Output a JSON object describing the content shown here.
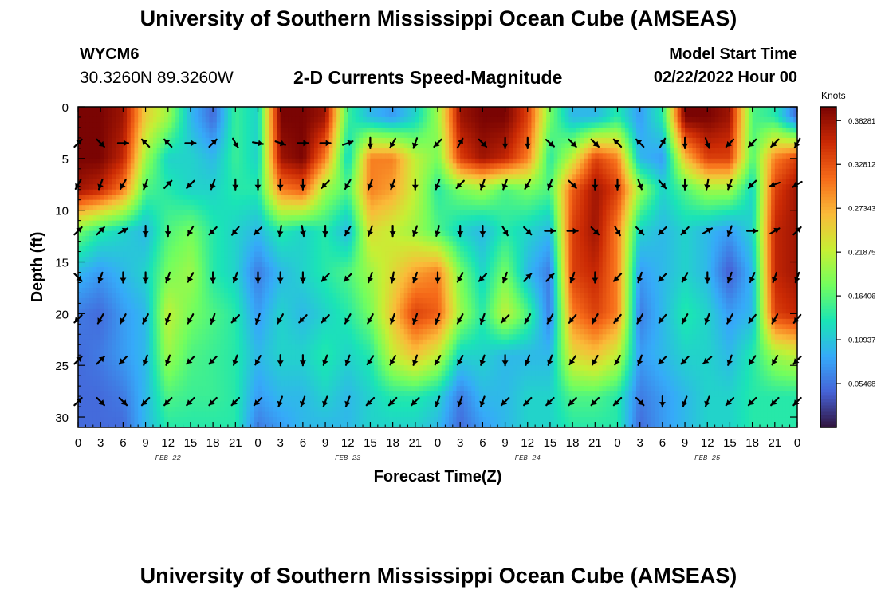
{
  "header": {
    "title": "University of Southern Mississippi Ocean Cube (AMSEAS)",
    "station_id": "WYCM6",
    "station_coords": "30.3260N  89.3260W",
    "subtitle": "2-D Currents Speed-Magnitude",
    "start_label": "Model Start Time",
    "start_value": "02/22/2022 Hour 00"
  },
  "footer": {
    "title": "University of Southern Mississippi Ocean Cube (AMSEAS)"
  },
  "chart_data": {
    "type": "heatmap",
    "xlabel": "Forecast Time(Z)",
    "ylabel": "Depth (ft)",
    "x_tick_labels": [
      "0",
      "3",
      "6",
      "9",
      "12",
      "15",
      "18",
      "21",
      "0",
      "3",
      "6",
      "9",
      "12",
      "15",
      "18",
      "21",
      "0",
      "3",
      "6",
      "9",
      "12",
      "15",
      "18",
      "21",
      "0",
      "3",
      "6",
      "9",
      "12",
      "15",
      "18",
      "21",
      "0"
    ],
    "x_range_hours": [
      0,
      96
    ],
    "date_labels": [
      {
        "label": "FEB 22",
        "hour": 12
      },
      {
        "label": "FEB 23",
        "hour": 36
      },
      {
        "label": "FEB 24",
        "hour": 60
      },
      {
        "label": "FEB 25",
        "hour": 84
      }
    ],
    "y_ticks": [
      0,
      5,
      10,
      15,
      20,
      25,
      30
    ],
    "ylim": [
      0,
      31
    ],
    "y_inverted": true,
    "colorbar": {
      "unit": "Knots",
      "min": 0.0,
      "max": 0.4,
      "ticks": [
        "0.05468",
        "0.10937",
        "0.16406",
        "0.21875",
        "0.27343",
        "0.32812",
        "0.38281"
      ],
      "tick_values": [
        0.05468,
        0.10937,
        0.16406,
        0.21875,
        0.27343,
        0.32812,
        0.38281
      ],
      "colors": [
        "#30123b",
        "#4662d7",
        "#36aaf9",
        "#1ae4b6",
        "#72fe5e",
        "#c7ef34",
        "#fabb39",
        "#f66b19",
        "#cb2a04",
        "#7a0403"
      ]
    },
    "arrow_depths": [
      3.5,
      7.5,
      12,
      16.5,
      20.5,
      24.5,
      28.5
    ],
    "arrow_hours": [
      0,
      3,
      6,
      9,
      12,
      15,
      18,
      21,
      24,
      27,
      30,
      33,
      36,
      39,
      42,
      45,
      48,
      51,
      54,
      57,
      60,
      63,
      66,
      69,
      72,
      75,
      78,
      81,
      84,
      87,
      90,
      93,
      96
    ],
    "speed_bands": [
      {
        "depth": 1,
        "values": [
          0.4,
          0.4,
          0.38,
          0.25,
          0.2,
          0.1,
          0.05,
          0.15,
          0.12,
          0.4,
          0.4,
          0.38,
          0.15,
          0.1,
          0.08,
          0.12,
          0.2,
          0.38,
          0.4,
          0.4,
          0.34,
          0.18,
          0.1,
          0.1,
          0.14,
          0.08,
          0.14,
          0.4,
          0.4,
          0.38,
          0.16,
          0.14,
          0.05
        ]
      },
      {
        "depth": 5,
        "values": [
          0.4,
          0.4,
          0.36,
          0.2,
          0.12,
          0.12,
          0.1,
          0.15,
          0.12,
          0.38,
          0.4,
          0.3,
          0.12,
          0.3,
          0.3,
          0.22,
          0.18,
          0.34,
          0.38,
          0.36,
          0.3,
          0.14,
          0.22,
          0.34,
          0.3,
          0.1,
          0.08,
          0.26,
          0.34,
          0.34,
          0.16,
          0.3,
          0.34
        ]
      },
      {
        "depth": 8,
        "values": [
          0.38,
          0.36,
          0.3,
          0.16,
          0.14,
          0.12,
          0.12,
          0.14,
          0.14,
          0.3,
          0.32,
          0.2,
          0.16,
          0.3,
          0.28,
          0.22,
          0.14,
          0.18,
          0.2,
          0.16,
          0.18,
          0.16,
          0.32,
          0.38,
          0.34,
          0.2,
          0.12,
          0.16,
          0.2,
          0.2,
          0.12,
          0.34,
          0.38
        ]
      },
      {
        "depth": 12,
        "values": [
          0.18,
          0.14,
          0.12,
          0.1,
          0.16,
          0.18,
          0.14,
          0.12,
          0.1,
          0.14,
          0.12,
          0.14,
          0.1,
          0.24,
          0.22,
          0.2,
          0.16,
          0.12,
          0.1,
          0.14,
          0.12,
          0.1,
          0.34,
          0.38,
          0.3,
          0.12,
          0.1,
          0.12,
          0.1,
          0.08,
          0.12,
          0.36,
          0.38
        ]
      },
      {
        "depth": 16,
        "values": [
          0.1,
          0.08,
          0.1,
          0.12,
          0.18,
          0.2,
          0.14,
          0.12,
          0.06,
          0.1,
          0.12,
          0.14,
          0.16,
          0.2,
          0.24,
          0.28,
          0.3,
          0.18,
          0.12,
          0.18,
          0.1,
          0.06,
          0.34,
          0.36,
          0.3,
          0.08,
          0.1,
          0.12,
          0.1,
          0.04,
          0.1,
          0.36,
          0.38
        ]
      },
      {
        "depth": 20,
        "values": [
          0.06,
          0.05,
          0.08,
          0.1,
          0.22,
          0.18,
          0.16,
          0.14,
          0.08,
          0.12,
          0.1,
          0.12,
          0.14,
          0.18,
          0.26,
          0.34,
          0.32,
          0.2,
          0.14,
          0.22,
          0.16,
          0.06,
          0.3,
          0.34,
          0.3,
          0.06,
          0.1,
          0.14,
          0.12,
          0.08,
          0.1,
          0.34,
          0.36
        ]
      },
      {
        "depth": 24,
        "values": [
          0.05,
          0.06,
          0.08,
          0.1,
          0.2,
          0.16,
          0.15,
          0.14,
          0.1,
          0.12,
          0.12,
          0.14,
          0.12,
          0.14,
          0.22,
          0.26,
          0.22,
          0.12,
          0.12,
          0.1,
          0.1,
          0.1,
          0.24,
          0.26,
          0.22,
          0.08,
          0.1,
          0.12,
          0.12,
          0.1,
          0.14,
          0.2,
          0.22
        ]
      },
      {
        "depth": 28,
        "values": [
          0.05,
          0.05,
          0.06,
          0.1,
          0.16,
          0.15,
          0.15,
          0.14,
          0.08,
          0.1,
          0.1,
          0.12,
          0.1,
          0.12,
          0.14,
          0.14,
          0.12,
          0.06,
          0.1,
          0.1,
          0.12,
          0.12,
          0.16,
          0.16,
          0.14,
          0.06,
          0.08,
          0.1,
          0.12,
          0.12,
          0.14,
          0.14,
          0.14
        ]
      },
      {
        "depth": 31,
        "values": [
          0.05,
          0.05,
          0.05,
          0.1,
          0.14,
          0.14,
          0.14,
          0.14,
          0.06,
          0.08,
          0.1,
          0.1,
          0.1,
          0.12,
          0.12,
          0.12,
          0.1,
          0.05,
          0.08,
          0.1,
          0.12,
          0.12,
          0.14,
          0.14,
          0.14,
          0.05,
          0.08,
          0.1,
          0.12,
          0.12,
          0.14,
          0.14,
          0.14
        ]
      }
    ],
    "direction_bands": [
      {
        "depth": 3.5,
        "angles_deg": [
          45,
          135,
          90,
          315,
          315,
          90,
          45,
          150,
          100,
          110,
          90,
          90,
          70,
          180,
          210,
          200,
          225,
          30,
          135,
          180,
          180,
          130,
          135,
          135,
          315,
          315,
          30,
          180,
          160,
          225,
          225,
          225,
          210
        ]
      },
      {
        "depth": 7.5,
        "angles_deg": [
          210,
          200,
          210,
          200,
          45,
          225,
          200,
          180,
          180,
          180,
          180,
          225,
          210,
          200,
          200,
          180,
          200,
          225,
          200,
          200,
          210,
          200,
          135,
          180,
          180,
          160,
          140,
          180,
          190,
          200,
          225,
          250,
          240
        ]
      },
      {
        "depth": 12,
        "angles_deg": [
          45,
          45,
          60,
          180,
          180,
          210,
          225,
          220,
          225,
          190,
          170,
          180,
          210,
          200,
          180,
          200,
          195,
          180,
          180,
          150,
          135,
          90,
          90,
          135,
          150,
          135,
          225,
          225,
          60,
          200,
          90,
          60,
          45
        ]
      },
      {
        "depth": 16.5,
        "angles_deg": [
          135,
          200,
          180,
          180,
          200,
          210,
          180,
          200,
          180,
          180,
          180,
          225,
          225,
          200,
          190,
          200,
          180,
          210,
          225,
          200,
          45,
          45,
          200,
          180,
          225,
          200,
          225,
          210,
          180,
          200,
          205,
          200,
          200
        ]
      },
      {
        "depth": 20.5,
        "angles_deg": [
          225,
          210,
          210,
          210,
          200,
          210,
          200,
          225,
          200,
          210,
          225,
          225,
          210,
          210,
          200,
          200,
          200,
          210,
          200,
          225,
          210,
          210,
          220,
          210,
          220,
          210,
          220,
          210,
          200,
          210,
          220,
          210,
          220
        ]
      },
      {
        "depth": 24.5,
        "angles_deg": [
          45,
          45,
          225,
          200,
          200,
          225,
          225,
          200,
          210,
          180,
          180,
          200,
          200,
          215,
          210,
          200,
          210,
          210,
          200,
          180,
          200,
          200,
          215,
          210,
          210,
          200,
          225,
          225,
          230,
          200,
          215,
          210,
          225
        ]
      },
      {
        "depth": 28.5,
        "angles_deg": [
          45,
          135,
          135,
          225,
          225,
          225,
          225,
          225,
          225,
          200,
          200,
          200,
          200,
          225,
          225,
          225,
          200,
          200,
          200,
          225,
          225,
          225,
          225,
          225,
          225,
          135,
          180,
          200,
          200,
          225,
          225,
          225,
          225
        ]
      }
    ]
  }
}
